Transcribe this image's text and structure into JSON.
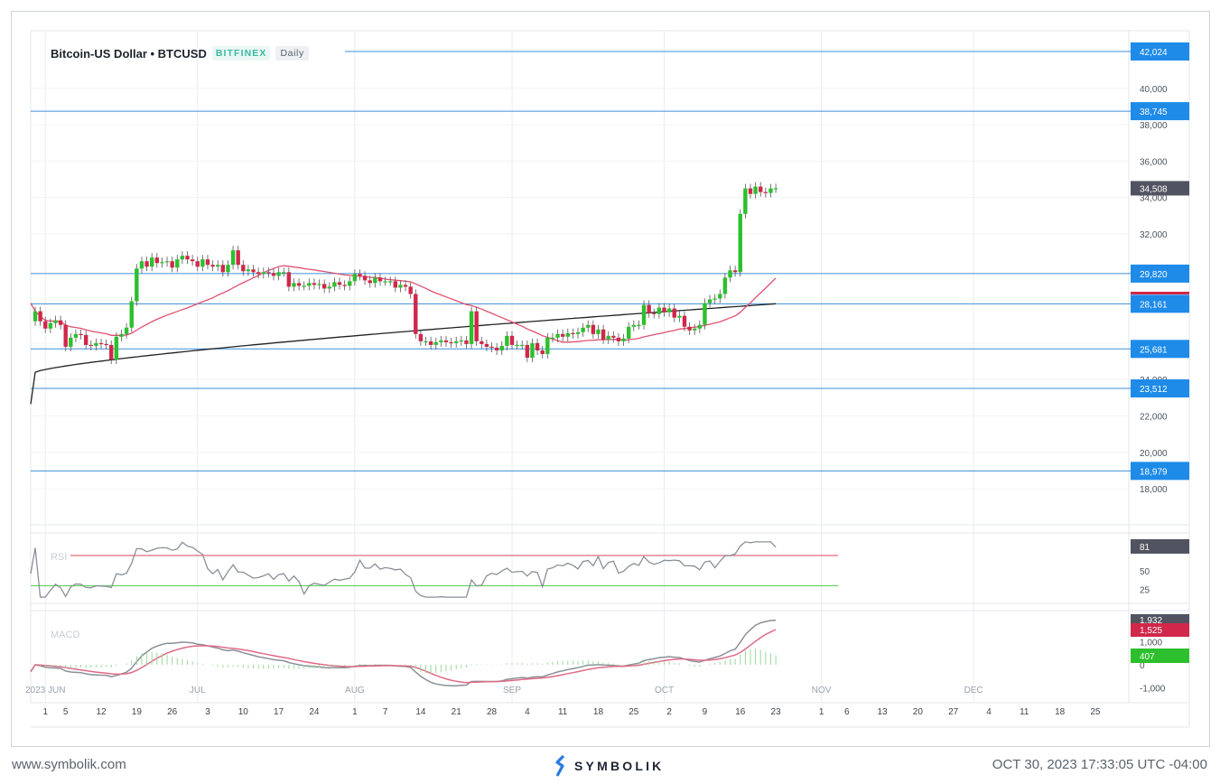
{
  "header": {
    "title": "Bitcoin-US Dollar • BTCUSD",
    "exchange": "BITFINEX",
    "timeframe": "Daily"
  },
  "footer": {
    "website": "www.symbolik.com",
    "brand": "SYMBOLIK",
    "timestamp": "OCT 30, 2023 17:33:05 UTC -04:00"
  },
  "colors": {
    "up": "#2dbf2d",
    "down": "#d0274a",
    "level": "#3d8fd8",
    "ma_short": "#e0506f",
    "ma_long": "#222222",
    "rsi": "#8a8f98",
    "macd_signal": "#e06a86"
  },
  "chart_data": {
    "type": "candlestick",
    "price_axis": {
      "ticks": [
        18000,
        20000,
        22000,
        24000,
        26000,
        32000,
        34000,
        36000,
        38000,
        40000
      ],
      "tick_labels": [
        "18,000",
        "20,000",
        "22,000",
        "24,000",
        "26,000",
        "32,000",
        "34,000",
        "36,000",
        "38,000",
        "40,000"
      ],
      "range": [
        16000,
        42800
      ]
    },
    "levels": [
      {
        "value": 42024,
        "label": "42,024"
      },
      {
        "value": 38745,
        "label": "38,745"
      },
      {
        "value": 29820,
        "label": "29,820"
      },
      {
        "value": 28161,
        "label": "28,161"
      },
      {
        "value": 25681,
        "label": "25,681"
      },
      {
        "value": 23512,
        "label": "23,512"
      },
      {
        "value": 18979,
        "label": "18,979"
      }
    ],
    "last_price": {
      "value": 34508,
      "label": "34,508"
    },
    "x_axis": {
      "start": "2023-05-30",
      "months": [
        {
          "day": 2,
          "label": "2023 JUN"
        },
        {
          "day": 32,
          "label": "JUL"
        },
        {
          "day": 63,
          "label": "AUG"
        },
        {
          "day": 94,
          "label": "SEP"
        },
        {
          "day": 124,
          "label": "OCT"
        },
        {
          "day": 155,
          "label": "NOV"
        },
        {
          "day": 185,
          "label": "DEC"
        }
      ],
      "days": [
        {
          "day": 2,
          "label": "1"
        },
        {
          "day": 6,
          "label": "5"
        },
        {
          "day": 13,
          "label": "12"
        },
        {
          "day": 20,
          "label": "19"
        },
        {
          "day": 27,
          "label": "26"
        },
        {
          "day": 34,
          "label": "3"
        },
        {
          "day": 41,
          "label": "10"
        },
        {
          "day": 48,
          "label": "17"
        },
        {
          "day": 55,
          "label": "24"
        },
        {
          "day": 63,
          "label": "1"
        },
        {
          "day": 69,
          "label": "7"
        },
        {
          "day": 76,
          "label": "14"
        },
        {
          "day": 83,
          "label": "21"
        },
        {
          "day": 90,
          "label": "28"
        },
        {
          "day": 97,
          "label": "4"
        },
        {
          "day": 104,
          "label": "11"
        },
        {
          "day": 111,
          "label": "18"
        },
        {
          "day": 118,
          "label": "25"
        },
        {
          "day": 125,
          "label": "2"
        },
        {
          "day": 132,
          "label": "9"
        },
        {
          "day": 139,
          "label": "16"
        },
        {
          "day": 146,
          "label": "23"
        },
        {
          "day": 155,
          "label": "1"
        },
        {
          "day": 160,
          "label": "6"
        },
        {
          "day": 167,
          "label": "13"
        },
        {
          "day": 174,
          "label": "20"
        },
        {
          "day": 181,
          "label": "27"
        },
        {
          "day": 188,
          "label": "4"
        },
        {
          "day": 195,
          "label": "11"
        },
        {
          "day": 202,
          "label": "18"
        },
        {
          "day": 209,
          "label": "25"
        }
      ]
    },
    "candles": {
      "first_date": "2023-05-30",
      "closes": [
        27750,
        27200,
        26800,
        27100,
        27250,
        27000,
        25800,
        26300,
        26500,
        26450,
        25900,
        25850,
        26000,
        25950,
        25900,
        25100,
        26350,
        26500,
        26850,
        28300,
        30100,
        30500,
        30200,
        30700,
        30400,
        30450,
        30500,
        30150,
        30600,
        30800,
        30600,
        30500,
        30200,
        30600,
        30300,
        30200,
        30300,
        29900,
        30300,
        31100,
        30300,
        29950,
        30050,
        29900,
        29800,
        29900,
        29850,
        29700,
        29900,
        29900,
        29100,
        29300,
        29150,
        29150,
        29300,
        29200,
        29250,
        29000,
        29100,
        29350,
        29200,
        29150,
        29400,
        29800,
        29700,
        29450,
        29300,
        29600,
        29400,
        29400,
        29400,
        29050,
        29200,
        29100,
        28700,
        26500,
        26100,
        26100,
        25900,
        26050,
        26150,
        26050,
        26000,
        26100,
        26150,
        25950,
        27750,
        26100,
        25950,
        25800,
        25750,
        25600,
        25850,
        26400,
        25900,
        25900,
        25900,
        25200,
        26000,
        25600,
        25400,
        26300,
        26300,
        26500,
        26350,
        26550,
        26500,
        26600,
        26850,
        27000,
        26500,
        26750,
        26200,
        26400,
        26300,
        26100,
        26250,
        26900,
        27000,
        27000,
        28100,
        27650,
        27600,
        27950,
        27700,
        27900,
        27400,
        27500,
        26900,
        26700,
        26800,
        27000,
        28200,
        28400,
        28450,
        28700,
        29600,
        30000,
        29900,
        33100,
        34500,
        34200,
        34600,
        34300,
        34250,
        34500,
        34508
      ]
    },
    "rsi": {
      "label": "RSI",
      "upper": 70,
      "lower": 30,
      "ticks": [
        50,
        25
      ],
      "last": {
        "value": 81,
        "label": "81"
      }
    },
    "macd": {
      "label": "MACD",
      "ticks": [
        1000,
        0,
        -1000
      ],
      "tick_labels": [
        "1,000",
        "0",
        "-1,000"
      ],
      "macd_last": {
        "value": 1932,
        "label": "1,932"
      },
      "signal_last": {
        "value": 1525,
        "label": "1,525"
      },
      "hist_last": {
        "value": 407,
        "label": "407"
      }
    }
  }
}
